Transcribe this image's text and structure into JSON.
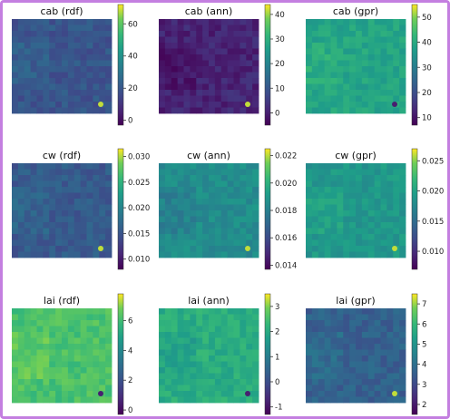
{
  "colors": {
    "frame": "#c47fe0",
    "viridis_low": "#440154",
    "viridis_mid": "#21918c",
    "viridis_high": "#fde725"
  },
  "chart_data": [
    {
      "type": "heatmap",
      "title": "cab (rdf)",
      "colorbar": {
        "ticks": [
          0,
          20,
          40,
          60
        ],
        "range": [
          -3,
          72
        ]
      },
      "mean_level": 0.3
    },
    {
      "type": "heatmap",
      "title": "cab (ann)",
      "colorbar": {
        "ticks": [
          0,
          10,
          20,
          30,
          40
        ],
        "range": [
          -5,
          44
        ]
      },
      "mean_level": 0.12
    },
    {
      "type": "heatmap",
      "title": "cab (gpr)",
      "colorbar": {
        "ticks": [
          10,
          20,
          30,
          40,
          50
        ],
        "range": [
          7,
          55
        ]
      },
      "mean_level": 0.66
    },
    {
      "type": "heatmap",
      "title": "cw (rdf)",
      "colorbar": {
        "ticks": [
          0.01,
          0.015,
          0.02,
          0.025,
          0.03
        ],
        "range": [
          0.008,
          0.0315
        ]
      },
      "mean_level": 0.32
    },
    {
      "type": "heatmap",
      "title": "cw (ann)",
      "colorbar": {
        "ticks": [
          0.014,
          0.016,
          0.018,
          0.02,
          0.022
        ],
        "range": [
          0.0137,
          0.0225
        ]
      },
      "mean_level": 0.55
    },
    {
      "type": "heatmap",
      "title": "cw (gpr)",
      "colorbar": {
        "ticks": [
          0.01,
          0.015,
          0.02,
          0.025
        ],
        "range": [
          0.007,
          0.027
        ]
      },
      "mean_level": 0.6
    },
    {
      "type": "heatmap",
      "title": "lai (rdf)",
      "colorbar": {
        "ticks": [
          0,
          2,
          4,
          6
        ],
        "range": [
          -0.3,
          7.8
        ]
      },
      "mean_level": 0.8
    },
    {
      "type": "heatmap",
      "title": "lai (ann)",
      "colorbar": {
        "ticks": [
          -1,
          0,
          1,
          2,
          3
        ],
        "range": [
          -1.3,
          3.5
        ]
      },
      "mean_level": 0.7
    },
    {
      "type": "heatmap",
      "title": "lai (gpr)",
      "colorbar": {
        "ticks": [
          2,
          3,
          4,
          5,
          6,
          7
        ],
        "range": [
          1.5,
          7.5
        ]
      },
      "mean_level": 0.35
    }
  ]
}
